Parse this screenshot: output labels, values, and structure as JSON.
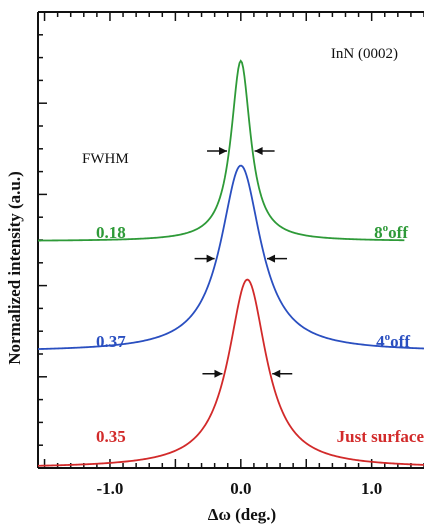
{
  "chart_data": {
    "type": "line",
    "xlabel": "Δω (deg.)",
    "ylabel": "Normalized intensity (a.u.)",
    "xlim": [
      -1.55,
      1.4
    ],
    "ylim": [
      0,
      3.92
    ],
    "x_ticks": [
      -1.0,
      0.0,
      1.0
    ],
    "x_tick_labels": [
      "-1.0",
      "0.0",
      "1.0"
    ],
    "grid": false,
    "annotations": {
      "sample": "InN (0002)",
      "fwhm_label": "FWHM"
    },
    "series": [
      {
        "label_left": "0.18",
        "label_right_deg": "8",
        "label_right_unit": "o",
        "label_right_text": "off",
        "color": "#2e9a38",
        "fwhm": 0.18,
        "baseline": 1.95,
        "peak": 3.5,
        "center": 0.0,
        "x_end": 1.25
      },
      {
        "label_left": "0.37",
        "label_right_deg": "4",
        "label_right_unit": "o",
        "label_right_text": "off",
        "color": "#2a4fc0",
        "fwhm": 0.37,
        "baseline": 1.0,
        "peak": 2.6,
        "center": 0.0,
        "x_end": 1.4
      },
      {
        "label_left": "0.35",
        "label_right_text": "Just surface",
        "color": "#d22a2a",
        "fwhm": 0.35,
        "baseline": 0.0,
        "peak": 1.62,
        "center": 0.05,
        "x_end": 1.4
      }
    ]
  }
}
